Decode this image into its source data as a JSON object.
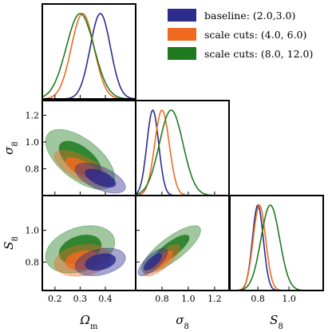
{
  "chart_data": {
    "type": "triangle",
    "parameters": [
      {
        "key": "om",
        "label": "Ω",
        "sub": "m",
        "range": [
          0.15,
          0.52
        ],
        "ticks": [
          "0.2",
          "0.3",
          "0.4"
        ],
        "tick_values": [
          0.2,
          0.3,
          0.4
        ]
      },
      {
        "key": "s8",
        "label": "σ",
        "sub": "8",
        "range": [
          0.6,
          1.31
        ],
        "ticks": [
          "0.8",
          "1.0",
          "1.2"
        ],
        "tick_values": [
          0.8,
          1.0,
          1.2
        ]
      },
      {
        "key": "S8",
        "label": "S",
        "sub": "8",
        "range": [
          0.62,
          1.22
        ],
        "ticks": [
          "0.8",
          "1.0"
        ],
        "tick_values": [
          0.8,
          1.0
        ]
      }
    ],
    "legend": {
      "placement": "top-right",
      "entries": [
        {
          "label": "baseline: (2.0,3.0)",
          "color": "#2c2c8c"
        },
        {
          "label": "scale cuts: (4.0, 6.0)",
          "color": "#ef6a20"
        },
        {
          "label": "scale cuts: (8.0, 12.0)",
          "color": "#1f7a1f"
        }
      ]
    },
    "series": [
      {
        "name": "baseline: (2.0,3.0)",
        "color": "#2c2c8c",
        "mean": {
          "om": 0.38,
          "s8": 0.73,
          "S8": 0.8
        },
        "sd": {
          "om": 0.04,
          "s8": 0.045,
          "S8": 0.035
        },
        "rho": {
          "om_s8": -0.6,
          "om_S8": 0.3,
          "s8_S8": 0.75
        }
      },
      {
        "name": "scale cuts: (4.0, 6.0)",
        "color": "#ef6a20",
        "mean": {
          "om": 0.31,
          "s8": 0.8,
          "S8": 0.81
        },
        "sd": {
          "om": 0.045,
          "s8": 0.055,
          "S8": 0.04
        },
        "rho": {
          "om_s8": -0.7,
          "om_S8": 0.2,
          "s8_S8": 0.8
        }
      },
      {
        "name": "scale cuts: (8.0, 12.0)",
        "color": "#1f7a1f",
        "mean": {
          "om": 0.3,
          "s8": 0.87,
          "S8": 0.88
        },
        "sd": {
          "om": 0.055,
          "s8": 0.09,
          "S8": 0.06
        },
        "rho": {
          "om_s8": -0.6,
          "om_S8": 0.3,
          "s8_S8": 0.8
        }
      }
    ]
  }
}
